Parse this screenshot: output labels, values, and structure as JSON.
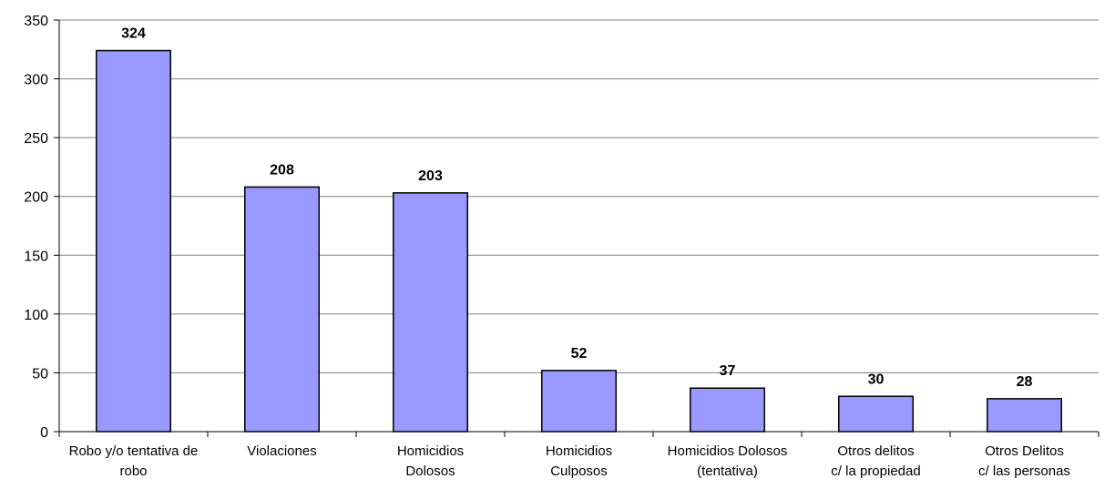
{
  "chart_data": {
    "type": "bar",
    "categories": [
      [
        "Robo y/o tentativa de",
        "robo"
      ],
      [
        "Violaciones"
      ],
      [
        "Homicidios",
        "Dolosos"
      ],
      [
        "Homicidios",
        "Culposos"
      ],
      [
        "Homicidios Dolosos",
        "(tentativa)"
      ],
      [
        "Otros delitos",
        "c/ la propiedad"
      ],
      [
        "Otros Delitos",
        "c/ las personas"
      ]
    ],
    "values": [
      324,
      208,
      203,
      52,
      37,
      30,
      28
    ],
    "data_labels": [
      "324",
      "208",
      "203",
      "52",
      "37",
      "30",
      "28"
    ],
    "ylim": [
      0,
      350
    ],
    "yticks": [
      0,
      50,
      100,
      150,
      200,
      250,
      300,
      350
    ],
    "ytick_labels": [
      "0",
      "50",
      "100",
      "150",
      "200",
      "250",
      "300",
      "350"
    ],
    "title": "",
    "xlabel": "",
    "ylabel": "",
    "grid": true,
    "colors": {
      "bar_fill": "#9999ff",
      "bar_stroke": "#000000",
      "grid": "#808080",
      "axis": "#000000"
    }
  }
}
